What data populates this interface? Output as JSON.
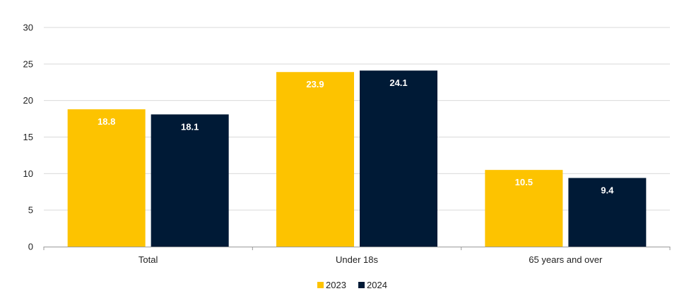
{
  "chart_data": {
    "type": "bar",
    "categories": [
      "Total",
      "Under 18s",
      "65 years and over"
    ],
    "series": [
      {
        "name": "2023",
        "values": [
          18.8,
          23.9,
          10.5
        ],
        "color": "#FDC300",
        "labels": [
          "18.8",
          "23.9",
          "10.5"
        ]
      },
      {
        "name": "2024",
        "values": [
          18.1,
          24.1,
          9.4
        ],
        "color": "#001A36",
        "labels": [
          "18.1",
          "24.1",
          "9.4"
        ]
      }
    ],
    "yticks": [
      "0",
      "5",
      "10",
      "15",
      "20",
      "25",
      "30"
    ],
    "ylim": [
      0,
      30
    ],
    "grid": true,
    "legend_position": "bottom-center",
    "title": "",
    "xlabel": "",
    "ylabel": ""
  }
}
